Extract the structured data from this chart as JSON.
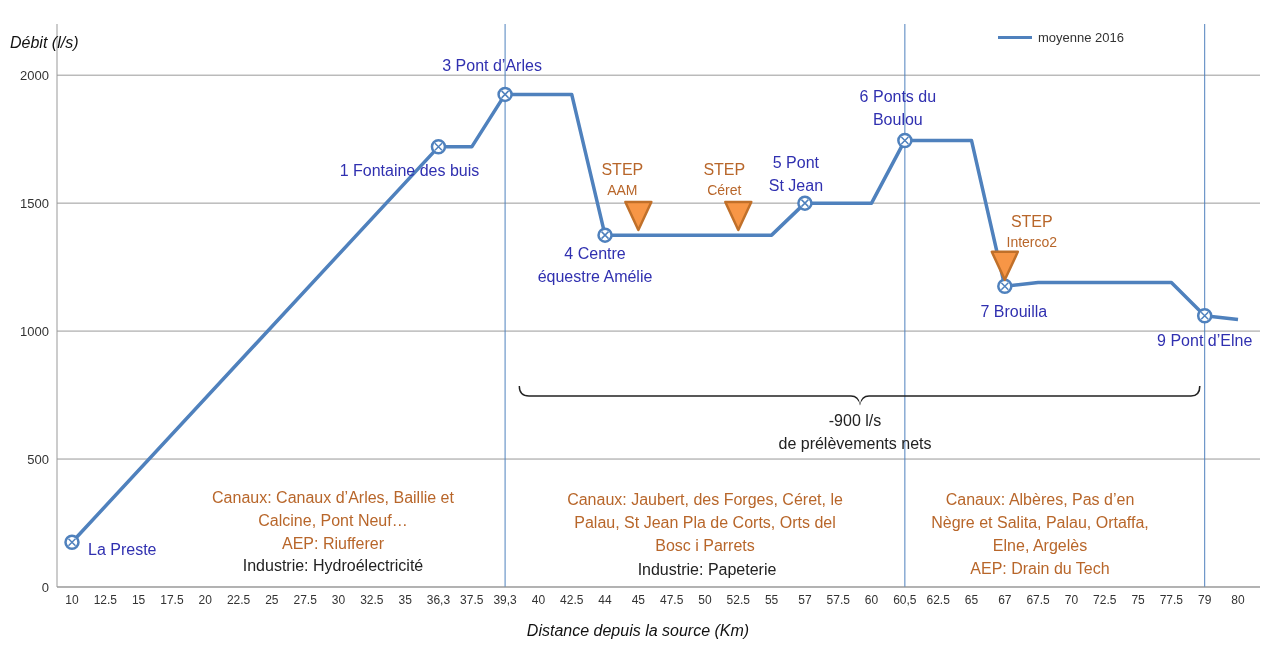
{
  "chart_data": {
    "type": "line",
    "xlabel": "Distance depuis la source (Km)",
    "ylabel": "Débit (l/s)",
    "categories": [
      "10",
      "12.5",
      "15",
      "17.5",
      "20",
      "22.5",
      "25",
      "27.5",
      "30",
      "32.5",
      "35",
      "36,3",
      "37.5",
      "39,3",
      "40",
      "42.5",
      "44",
      "45",
      "47.5",
      "50",
      "52.5",
      "55",
      "57",
      "57.5",
      "60",
      "60,5",
      "62.5",
      "65",
      "67",
      "67.5",
      "70",
      "72.5",
      "75",
      "77.5",
      "79",
      "80"
    ],
    "series": [
      {
        "name": "moyenne 2016",
        "color": "#4f81bd",
        "x": [
          "10",
          "36,3",
          "37.5",
          "39,3",
          "40",
          "42.5",
          "44",
          "45",
          "47.5",
          "50",
          "52.5",
          "55",
          "57",
          "57.5",
          "60",
          "60,5",
          "62.5",
          "65",
          "67",
          "67.5",
          "70",
          "72.5",
          "75",
          "77.5",
          "79",
          "80"
        ],
        "values": [
          175,
          1720,
          1720,
          1925,
          1925,
          1925,
          1375,
          1375,
          1375,
          1375,
          1375,
          1375,
          1500,
          1500,
          1500,
          1745,
          1745,
          1745,
          1175,
          1190,
          1190,
          1190,
          1190,
          1190,
          1060,
          1045
        ]
      },
      {
        "type": "scatter",
        "color": "#4f81bd",
        "marker": "circle",
        "x": [
          "10",
          "36,3",
          "39,3",
          "44",
          "57",
          "60,5",
          "67",
          "79"
        ],
        "values": [
          175,
          1720,
          1925,
          1375,
          1500,
          1745,
          1175,
          1060
        ]
      },
      {
        "type": "scatter",
        "color": "#f79646",
        "marker": "triangle",
        "x": [
          "45",
          "52.5",
          "67"
        ],
        "values": [
          1450,
          1450,
          1255
        ]
      }
    ],
    "ylim": [
      0,
      2200
    ],
    "yticks": [
      0,
      500,
      1000,
      1500,
      2000
    ],
    "grid": "y",
    "legend": "top right",
    "ref_lines": [
      {
        "axis": "x",
        "value": "39,3",
        "color": "#4f81bd"
      },
      {
        "axis": "x",
        "value": "60,5",
        "color": "#4f81bd"
      },
      {
        "axis": "x",
        "value": "79",
        "color": "#4f81bd"
      }
    ],
    "annotations": [
      {
        "text": "La Preste",
        "x": "10",
        "y": 175
      },
      {
        "text": "1 Fontaine des buis",
        "x": "36,3",
        "y": 1720
      },
      {
        "text": "3 Pont d’Arles",
        "x": "39,3",
        "y": 1925
      },
      {
        "text": "4 Centre\néquestre Amélie",
        "x": "44",
        "y": 1375
      },
      {
        "text": "5 Pont\nSt Jean",
        "x": "57",
        "y": 1500
      },
      {
        "text": "6 Ponts du\nBoulou",
        "x": "60,5",
        "y": 1745
      },
      {
        "text": "7 Brouilla",
        "x": "67",
        "y": 1175
      },
      {
        "text": "9 Pont d’Elne",
        "x": "79",
        "y": 1060
      },
      {
        "text": "STEP\nAAM",
        "x": "45",
        "y": 1450
      },
      {
        "text": "STEP\nCéret",
        "x": "52.5",
        "y": 1450
      },
      {
        "text": "STEP\nInterco2",
        "x": "67",
        "y": 1255
      },
      "-900 l/s\nde prélèvements nets",
      "Canaux: Canaux d’Arles, Baillie et\nCalcine, Pont Neuf…\nAEP:  Riufferer",
      "Industrie: Hydroélectricité",
      "Canaux: Jaubert, des Forges, Céret, le\nPalau, St Jean Pla de Corts, Orts del\nBosc i Parrets",
      "Industrie: Papeterie",
      "Canaux: Albères, Pas d’en\nNègre et Salita, Palau, Ortaffa,\nElne, Argelès\nAEP:  Drain du Tech"
    ]
  }
}
